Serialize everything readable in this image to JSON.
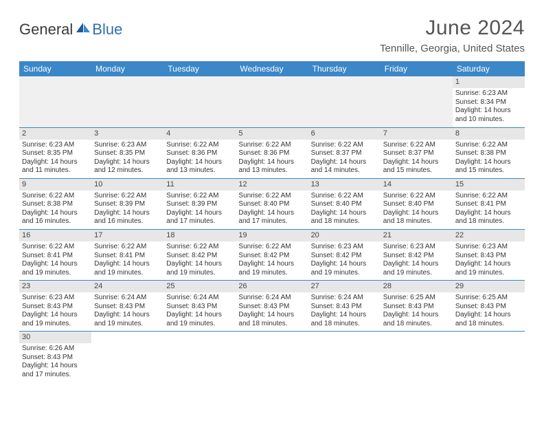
{
  "logo": {
    "text1": "General",
    "text2": "Blue",
    "icon_color": "#2f6fb3"
  },
  "header": {
    "month_title": "June 2024",
    "location": "Tennille, Georgia, United States"
  },
  "style": {
    "header_bg": "#3b87c8",
    "header_fg": "#ffffff",
    "cell_border": "#3b87c8",
    "daynum_bg": "#e7e7e7",
    "body_fontsize": 10,
    "month_fontsize": 30
  },
  "day_headers": [
    "Sunday",
    "Monday",
    "Tuesday",
    "Wednesday",
    "Thursday",
    "Friday",
    "Saturday"
  ],
  "weeks": [
    [
      null,
      null,
      null,
      null,
      null,
      null,
      {
        "n": "1",
        "sr": "6:23 AM",
        "ss": "8:34 PM",
        "dl": "14 hours and 10 minutes."
      }
    ],
    [
      {
        "n": "2",
        "sr": "6:23 AM",
        "ss": "8:35 PM",
        "dl": "14 hours and 11 minutes."
      },
      {
        "n": "3",
        "sr": "6:23 AM",
        "ss": "8:35 PM",
        "dl": "14 hours and 12 minutes."
      },
      {
        "n": "4",
        "sr": "6:22 AM",
        "ss": "8:36 PM",
        "dl": "14 hours and 13 minutes."
      },
      {
        "n": "5",
        "sr": "6:22 AM",
        "ss": "8:36 PM",
        "dl": "14 hours and 13 minutes."
      },
      {
        "n": "6",
        "sr": "6:22 AM",
        "ss": "8:37 PM",
        "dl": "14 hours and 14 minutes."
      },
      {
        "n": "7",
        "sr": "6:22 AM",
        "ss": "8:37 PM",
        "dl": "14 hours and 15 minutes."
      },
      {
        "n": "8",
        "sr": "6:22 AM",
        "ss": "8:38 PM",
        "dl": "14 hours and 15 minutes."
      }
    ],
    [
      {
        "n": "9",
        "sr": "6:22 AM",
        "ss": "8:38 PM",
        "dl": "14 hours and 16 minutes."
      },
      {
        "n": "10",
        "sr": "6:22 AM",
        "ss": "8:39 PM",
        "dl": "14 hours and 16 minutes."
      },
      {
        "n": "11",
        "sr": "6:22 AM",
        "ss": "8:39 PM",
        "dl": "14 hours and 17 minutes."
      },
      {
        "n": "12",
        "sr": "6:22 AM",
        "ss": "8:40 PM",
        "dl": "14 hours and 17 minutes."
      },
      {
        "n": "13",
        "sr": "6:22 AM",
        "ss": "8:40 PM",
        "dl": "14 hours and 18 minutes."
      },
      {
        "n": "14",
        "sr": "6:22 AM",
        "ss": "8:40 PM",
        "dl": "14 hours and 18 minutes."
      },
      {
        "n": "15",
        "sr": "6:22 AM",
        "ss": "8:41 PM",
        "dl": "14 hours and 18 minutes."
      }
    ],
    [
      {
        "n": "16",
        "sr": "6:22 AM",
        "ss": "8:41 PM",
        "dl": "14 hours and 19 minutes."
      },
      {
        "n": "17",
        "sr": "6:22 AM",
        "ss": "8:41 PM",
        "dl": "14 hours and 19 minutes."
      },
      {
        "n": "18",
        "sr": "6:22 AM",
        "ss": "8:42 PM",
        "dl": "14 hours and 19 minutes."
      },
      {
        "n": "19",
        "sr": "6:22 AM",
        "ss": "8:42 PM",
        "dl": "14 hours and 19 minutes."
      },
      {
        "n": "20",
        "sr": "6:23 AM",
        "ss": "8:42 PM",
        "dl": "14 hours and 19 minutes."
      },
      {
        "n": "21",
        "sr": "6:23 AM",
        "ss": "8:42 PM",
        "dl": "14 hours and 19 minutes."
      },
      {
        "n": "22",
        "sr": "6:23 AM",
        "ss": "8:43 PM",
        "dl": "14 hours and 19 minutes."
      }
    ],
    [
      {
        "n": "23",
        "sr": "6:23 AM",
        "ss": "8:43 PM",
        "dl": "14 hours and 19 minutes."
      },
      {
        "n": "24",
        "sr": "6:24 AM",
        "ss": "8:43 PM",
        "dl": "14 hours and 19 minutes."
      },
      {
        "n": "25",
        "sr": "6:24 AM",
        "ss": "8:43 PM",
        "dl": "14 hours and 19 minutes."
      },
      {
        "n": "26",
        "sr": "6:24 AM",
        "ss": "8:43 PM",
        "dl": "14 hours and 18 minutes."
      },
      {
        "n": "27",
        "sr": "6:24 AM",
        "ss": "8:43 PM",
        "dl": "14 hours and 18 minutes."
      },
      {
        "n": "28",
        "sr": "6:25 AM",
        "ss": "8:43 PM",
        "dl": "14 hours and 18 minutes."
      },
      {
        "n": "29",
        "sr": "6:25 AM",
        "ss": "8:43 PM",
        "dl": "14 hours and 18 minutes."
      }
    ],
    [
      {
        "n": "30",
        "sr": "6:26 AM",
        "ss": "8:43 PM",
        "dl": "14 hours and 17 minutes."
      },
      null,
      null,
      null,
      null,
      null,
      null
    ]
  ],
  "labels": {
    "sunrise": "Sunrise:",
    "sunset": "Sunset:",
    "daylight": "Daylight:"
  }
}
